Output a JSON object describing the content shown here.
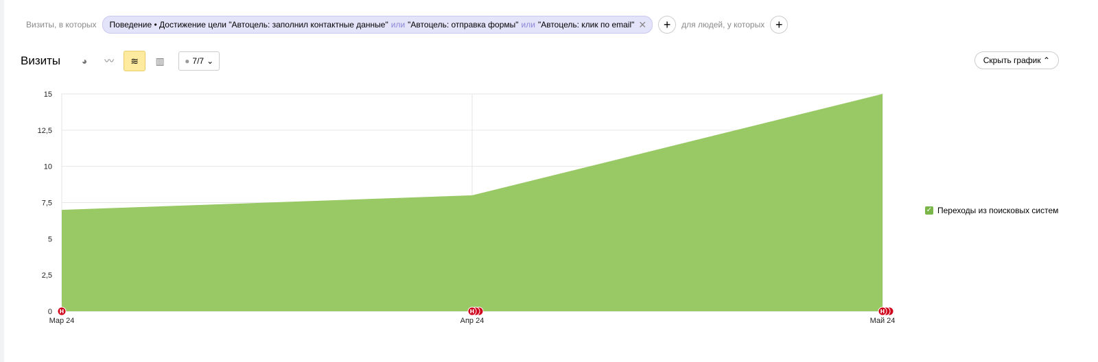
{
  "filter": {
    "prefix": "Визиты, в которых",
    "chip_category": "Поведение • Достижение цели",
    "goals": [
      "\"Автоцель: заполнил контактные данные\"",
      "\"Автоцель: отправка формы\"",
      "\"Автоцель: клик по email\""
    ],
    "or_label": "или",
    "people_label": "для людей, у которых"
  },
  "toolbar": {
    "title": "Визиты",
    "icons": [
      "pie-chart-icon",
      "line-chart-icon",
      "stacked-area-icon",
      "bar-chart-icon"
    ],
    "active_icon": "stacked-area-icon",
    "annotations_count": "7/7",
    "hide_chart_label": "Скрыть график"
  },
  "chart_data": {
    "type": "area",
    "categories": [
      "Мар 24",
      "Апр 24",
      "Май 24"
    ],
    "series": [
      {
        "name": "Переходы из поисковых систем",
        "values": [
          7,
          8,
          15
        ],
        "color": "#98c965"
      }
    ],
    "ylim": [
      0,
      15
    ],
    "yticks": [
      "0",
      "2,5",
      "5",
      "7,5",
      "10",
      "12,5",
      "15"
    ],
    "grid": true,
    "legend_position": "right",
    "annotation_markers": [
      1,
      3,
      3
    ],
    "annotation_color": "#d0021b"
  }
}
